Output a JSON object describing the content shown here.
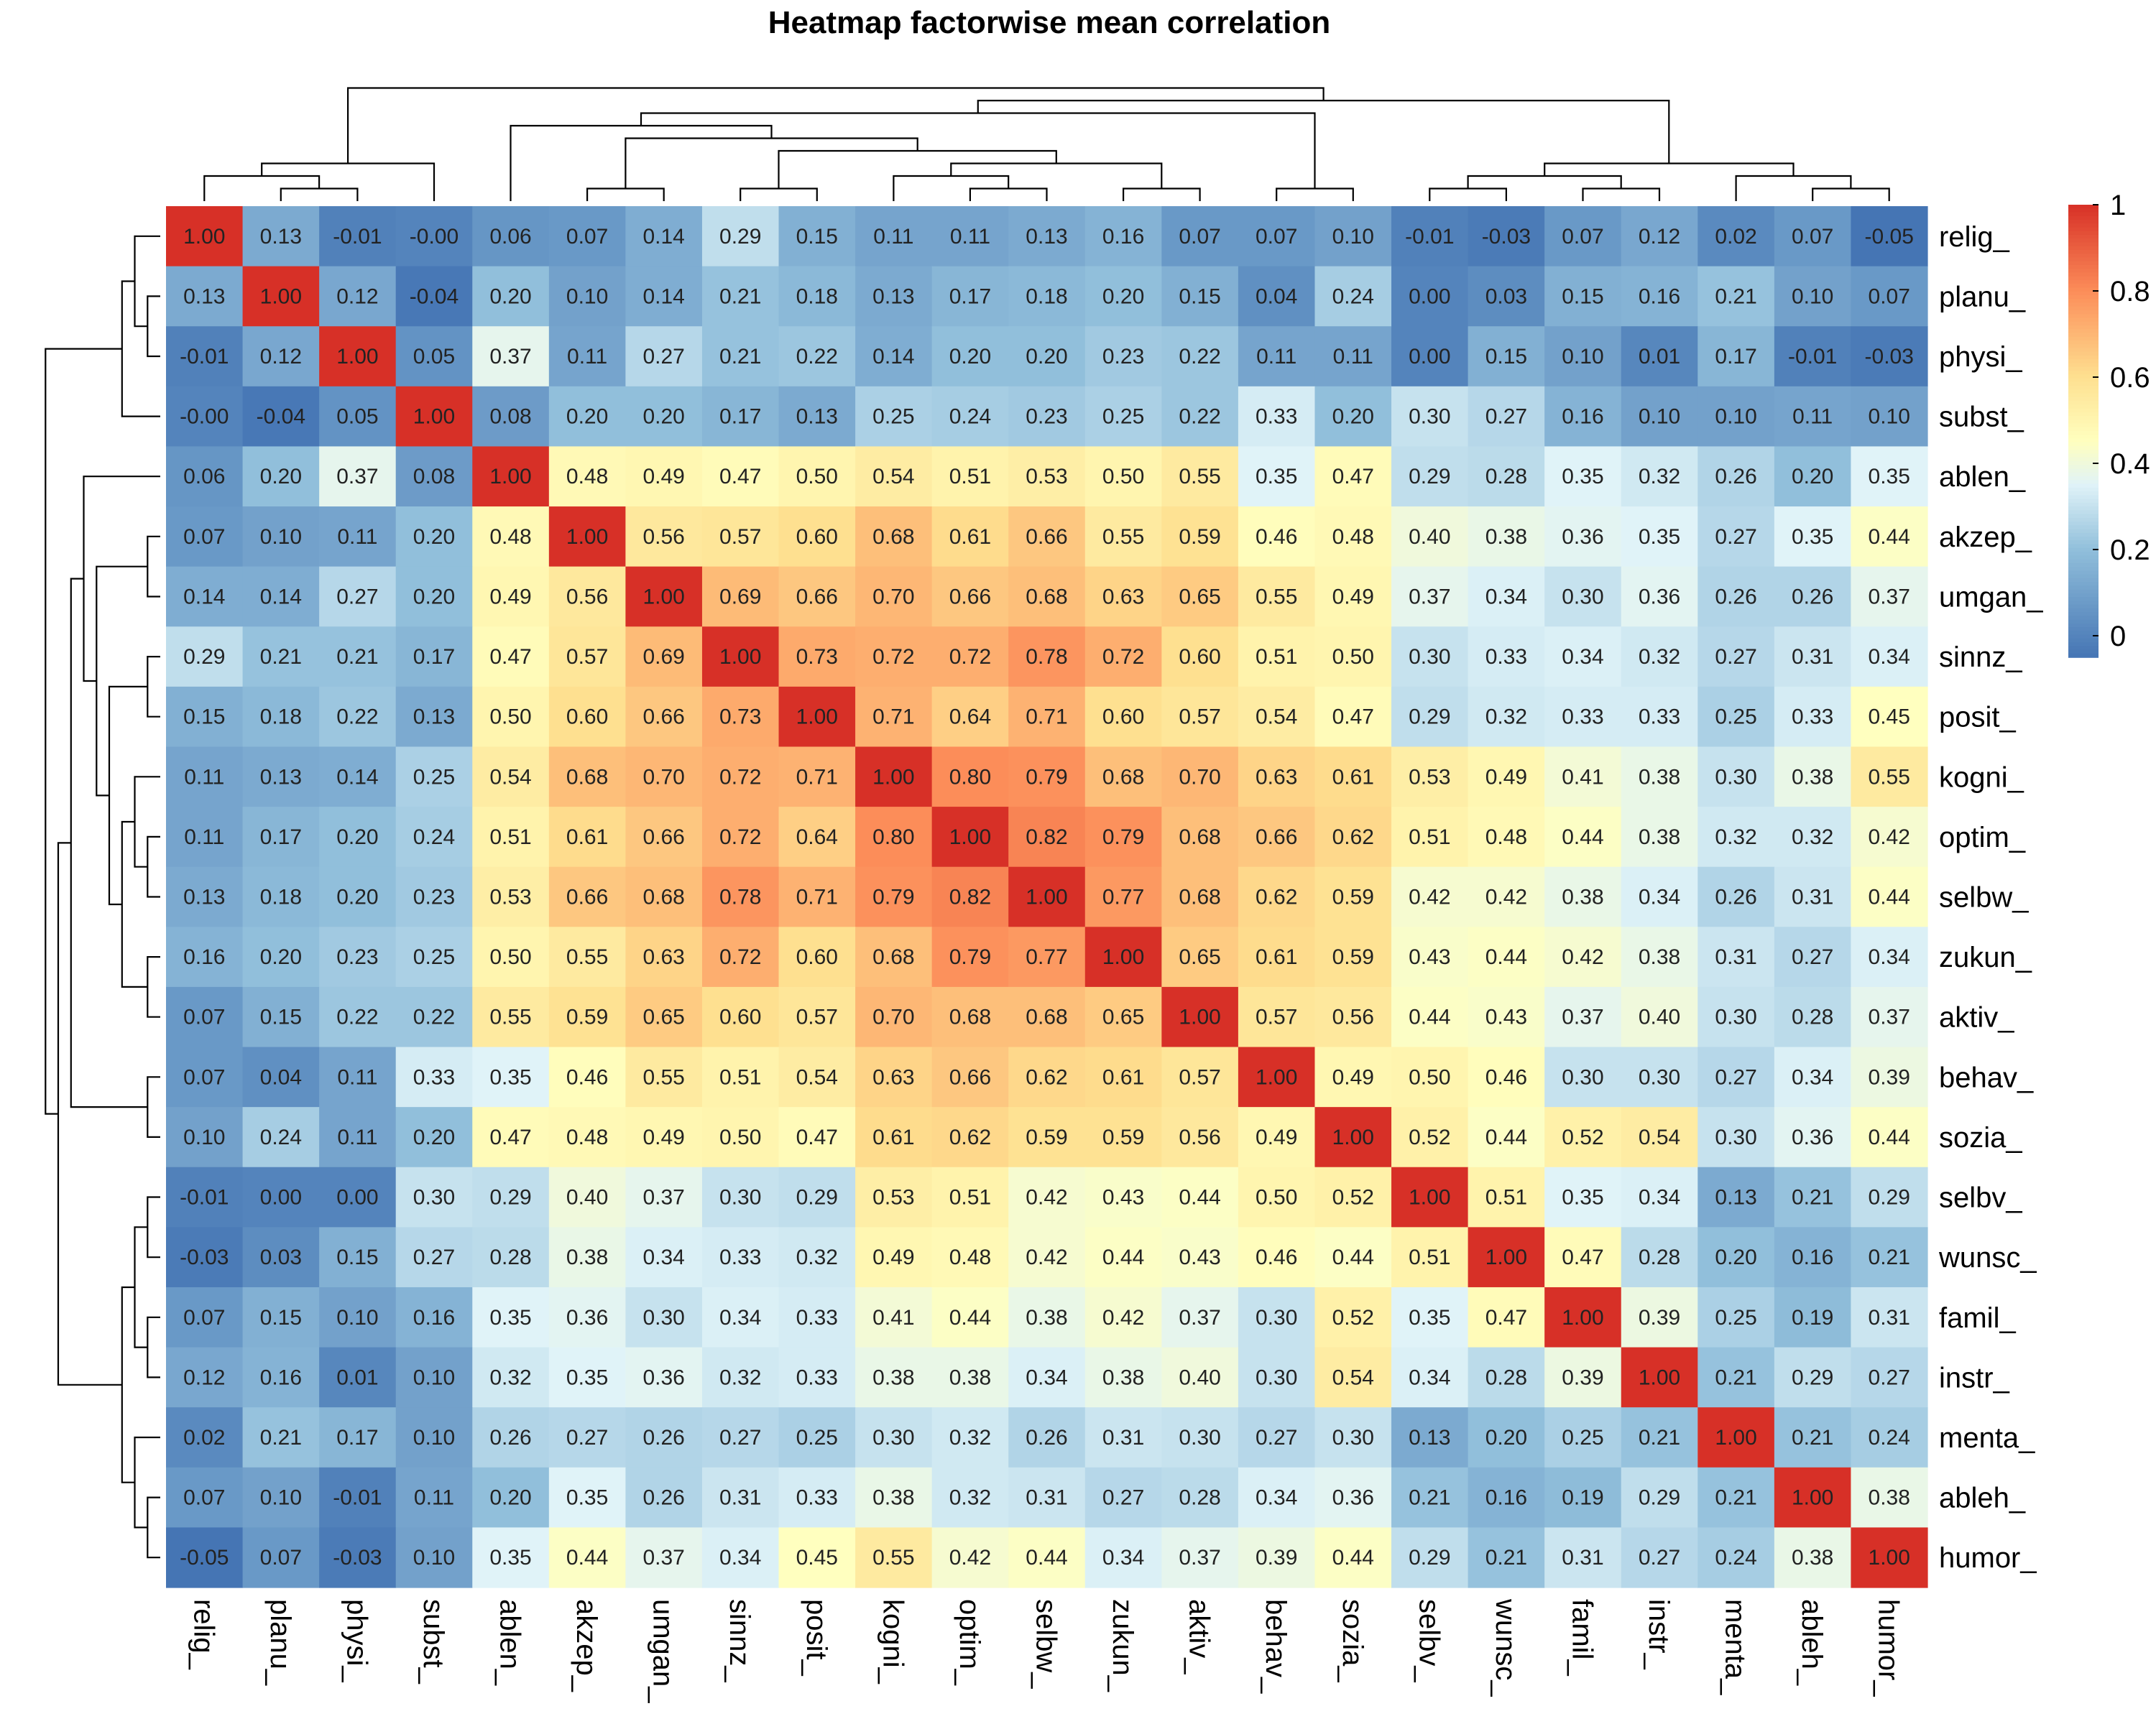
{
  "chart_data": {
    "type": "heatmap",
    "title": "Heatmap factorwise mean correlation",
    "labels": [
      "relig_",
      "planu_",
      "physi_",
      "subst_",
      "ablen_",
      "akzep_",
      "umgan_",
      "sinnz_",
      "posit_",
      "kogni_",
      "optim_",
      "selbw_",
      "zukun_",
      "aktiv_",
      "behav_",
      "sozia_",
      "selbv_",
      "wunsc_",
      "famil_",
      "instr_",
      "menta_",
      "ableh_",
      "humor_"
    ],
    "values": [
      [
        "1.00",
        "0.13",
        "-0.01",
        "-0.00",
        "0.06",
        "0.07",
        "0.14",
        "0.29",
        "0.15",
        "0.11",
        "0.11",
        "0.13",
        "0.16",
        "0.07",
        "0.07",
        "0.10",
        "-0.01",
        "-0.03",
        "0.07",
        "0.12",
        "0.02",
        "0.07",
        "-0.05"
      ],
      [
        "0.13",
        "1.00",
        "0.12",
        "-0.04",
        "0.20",
        "0.10",
        "0.14",
        "0.21",
        "0.18",
        "0.13",
        "0.17",
        "0.18",
        "0.20",
        "0.15",
        "0.04",
        "0.24",
        "0.00",
        "0.03",
        "0.15",
        "0.16",
        "0.21",
        "0.10",
        "0.07"
      ],
      [
        "-0.01",
        "0.12",
        "1.00",
        "0.05",
        "0.37",
        "0.11",
        "0.27",
        "0.21",
        "0.22",
        "0.14",
        "0.20",
        "0.20",
        "0.23",
        "0.22",
        "0.11",
        "0.11",
        "0.00",
        "0.15",
        "0.10",
        "0.01",
        "0.17",
        "-0.01",
        "-0.03"
      ],
      [
        "-0.00",
        "-0.04",
        "0.05",
        "1.00",
        "0.08",
        "0.20",
        "0.20",
        "0.17",
        "0.13",
        "0.25",
        "0.24",
        "0.23",
        "0.25",
        "0.22",
        "0.33",
        "0.20",
        "0.30",
        "0.27",
        "0.16",
        "0.10",
        "0.10",
        "0.11",
        "0.10"
      ],
      [
        "0.06",
        "0.20",
        "0.37",
        "0.08",
        "1.00",
        "0.48",
        "0.49",
        "0.47",
        "0.50",
        "0.54",
        "0.51",
        "0.53",
        "0.50",
        "0.55",
        "0.35",
        "0.47",
        "0.29",
        "0.28",
        "0.35",
        "0.32",
        "0.26",
        "0.20",
        "0.35"
      ],
      [
        "0.07",
        "0.10",
        "0.11",
        "0.20",
        "0.48",
        "1.00",
        "0.56",
        "0.57",
        "0.60",
        "0.68",
        "0.61",
        "0.66",
        "0.55",
        "0.59",
        "0.46",
        "0.48",
        "0.40",
        "0.38",
        "0.36",
        "0.35",
        "0.27",
        "0.35",
        "0.44"
      ],
      [
        "0.14",
        "0.14",
        "0.27",
        "0.20",
        "0.49",
        "0.56",
        "1.00",
        "0.69",
        "0.66",
        "0.70",
        "0.66",
        "0.68",
        "0.63",
        "0.65",
        "0.55",
        "0.49",
        "0.37",
        "0.34",
        "0.30",
        "0.36",
        "0.26",
        "0.26",
        "0.37"
      ],
      [
        "0.29",
        "0.21",
        "0.21",
        "0.17",
        "0.47",
        "0.57",
        "0.69",
        "1.00",
        "0.73",
        "0.72",
        "0.72",
        "0.78",
        "0.72",
        "0.60",
        "0.51",
        "0.50",
        "0.30",
        "0.33",
        "0.34",
        "0.32",
        "0.27",
        "0.31",
        "0.34"
      ],
      [
        "0.15",
        "0.18",
        "0.22",
        "0.13",
        "0.50",
        "0.60",
        "0.66",
        "0.73",
        "1.00",
        "0.71",
        "0.64",
        "0.71",
        "0.60",
        "0.57",
        "0.54",
        "0.47",
        "0.29",
        "0.32",
        "0.33",
        "0.33",
        "0.25",
        "0.33",
        "0.45"
      ],
      [
        "0.11",
        "0.13",
        "0.14",
        "0.25",
        "0.54",
        "0.68",
        "0.70",
        "0.72",
        "0.71",
        "1.00",
        "0.80",
        "0.79",
        "0.68",
        "0.70",
        "0.63",
        "0.61",
        "0.53",
        "0.49",
        "0.41",
        "0.38",
        "0.30",
        "0.38",
        "0.55"
      ],
      [
        "0.11",
        "0.17",
        "0.20",
        "0.24",
        "0.51",
        "0.61",
        "0.66",
        "0.72",
        "0.64",
        "0.80",
        "1.00",
        "0.82",
        "0.79",
        "0.68",
        "0.66",
        "0.62",
        "0.51",
        "0.48",
        "0.44",
        "0.38",
        "0.32",
        "0.32",
        "0.42"
      ],
      [
        "0.13",
        "0.18",
        "0.20",
        "0.23",
        "0.53",
        "0.66",
        "0.68",
        "0.78",
        "0.71",
        "0.79",
        "0.82",
        "1.00",
        "0.77",
        "0.68",
        "0.62",
        "0.59",
        "0.42",
        "0.42",
        "0.38",
        "0.34",
        "0.26",
        "0.31",
        "0.44"
      ],
      [
        "0.16",
        "0.20",
        "0.23",
        "0.25",
        "0.50",
        "0.55",
        "0.63",
        "0.72",
        "0.60",
        "0.68",
        "0.79",
        "0.77",
        "1.00",
        "0.65",
        "0.61",
        "0.59",
        "0.43",
        "0.44",
        "0.42",
        "0.38",
        "0.31",
        "0.27",
        "0.34"
      ],
      [
        "0.07",
        "0.15",
        "0.22",
        "0.22",
        "0.55",
        "0.59",
        "0.65",
        "0.60",
        "0.57",
        "0.70",
        "0.68",
        "0.68",
        "0.65",
        "1.00",
        "0.57",
        "0.56",
        "0.44",
        "0.43",
        "0.37",
        "0.40",
        "0.30",
        "0.28",
        "0.37"
      ],
      [
        "0.07",
        "0.04",
        "0.11",
        "0.33",
        "0.35",
        "0.46",
        "0.55",
        "0.51",
        "0.54",
        "0.63",
        "0.66",
        "0.62",
        "0.61",
        "0.57",
        "1.00",
        "0.49",
        "0.50",
        "0.46",
        "0.30",
        "0.30",
        "0.27",
        "0.34",
        "0.39"
      ],
      [
        "0.10",
        "0.24",
        "0.11",
        "0.20",
        "0.47",
        "0.48",
        "0.49",
        "0.50",
        "0.47",
        "0.61",
        "0.62",
        "0.59",
        "0.59",
        "0.56",
        "0.49",
        "1.00",
        "0.52",
        "0.44",
        "0.52",
        "0.54",
        "0.30",
        "0.36",
        "0.44"
      ],
      [
        "-0.01",
        "0.00",
        "0.00",
        "0.30",
        "0.29",
        "0.40",
        "0.37",
        "0.30",
        "0.29",
        "0.53",
        "0.51",
        "0.42",
        "0.43",
        "0.44",
        "0.50",
        "0.52",
        "1.00",
        "0.51",
        "0.35",
        "0.34",
        "0.13",
        "0.21",
        "0.29"
      ],
      [
        "-0.03",
        "0.03",
        "0.15",
        "0.27",
        "0.28",
        "0.38",
        "0.34",
        "0.33",
        "0.32",
        "0.49",
        "0.48",
        "0.42",
        "0.44",
        "0.43",
        "0.46",
        "0.44",
        "0.51",
        "1.00",
        "0.47",
        "0.28",
        "0.20",
        "0.16",
        "0.21"
      ],
      [
        "0.07",
        "0.15",
        "0.10",
        "0.16",
        "0.35",
        "0.36",
        "0.30",
        "0.34",
        "0.33",
        "0.41",
        "0.44",
        "0.38",
        "0.42",
        "0.37",
        "0.30",
        "0.52",
        "0.35",
        "0.47",
        "1.00",
        "0.39",
        "0.25",
        "0.19",
        "0.31"
      ],
      [
        "0.12",
        "0.16",
        "0.01",
        "0.10",
        "0.32",
        "0.35",
        "0.36",
        "0.32",
        "0.33",
        "0.38",
        "0.38",
        "0.34",
        "0.38",
        "0.40",
        "0.30",
        "0.54",
        "0.34",
        "0.28",
        "0.39",
        "1.00",
        "0.21",
        "0.29",
        "0.27"
      ],
      [
        "0.02",
        "0.21",
        "0.17",
        "0.10",
        "0.26",
        "0.27",
        "0.26",
        "0.27",
        "0.25",
        "0.30",
        "0.32",
        "0.26",
        "0.31",
        "0.30",
        "0.27",
        "0.30",
        "0.13",
        "0.20",
        "0.25",
        "0.21",
        "1.00",
        "0.21",
        "0.24"
      ],
      [
        "0.07",
        "0.10",
        "-0.01",
        "0.11",
        "0.20",
        "0.35",
        "0.26",
        "0.31",
        "0.33",
        "0.38",
        "0.32",
        "0.31",
        "0.27",
        "0.28",
        "0.34",
        "0.36",
        "0.21",
        "0.16",
        "0.19",
        "0.29",
        "0.21",
        "1.00",
        "0.38"
      ],
      [
        "-0.05",
        "0.07",
        "-0.03",
        "0.10",
        "0.35",
        "0.44",
        "0.37",
        "0.34",
        "0.45",
        "0.55",
        "0.42",
        "0.44",
        "0.34",
        "0.37",
        "0.39",
        "0.44",
        "0.29",
        "0.21",
        "0.31",
        "0.27",
        "0.24",
        "0.38",
        "1.00"
      ]
    ],
    "color_range": [
      -0.05,
      1.0
    ],
    "colors": [
      "#4575b4",
      "#91bfdb",
      "#e0f3f8",
      "#ffffbf",
      "#fee090",
      "#fc8d59",
      "#d73027"
    ],
    "legend": {
      "position": "right",
      "ticks": [
        "0",
        "0.2",
        "0.4",
        "0.6",
        "0.8",
        "1"
      ]
    }
  }
}
